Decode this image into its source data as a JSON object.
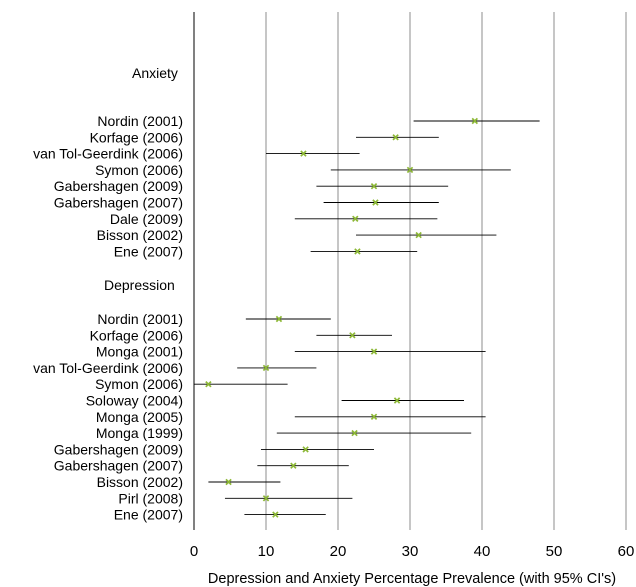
{
  "chart_data": {
    "type": "forest",
    "xlabel": "Depression and Anxiety Percentage Prevalence (with 95% CI's)",
    "xlim": [
      0,
      60
    ],
    "xticks": [
      0,
      10,
      20,
      30,
      40,
      50,
      60
    ],
    "grid": true,
    "marker_color": "#8DB836",
    "line_color": "#000000",
    "grid_color": "#8c8c8c",
    "groups": [
      {
        "label": "Anxiety",
        "studies": [
          {
            "label": "Nordin (2001)",
            "estimate": 39,
            "lower": 30.5,
            "upper": 48
          },
          {
            "label": "Korfage (2006)",
            "estimate": 28,
            "lower": 22.5,
            "upper": 34
          },
          {
            "label": "van Tol-Geerdink (2006)",
            "estimate": 15.2,
            "lower": 10,
            "upper": 23
          },
          {
            "label": "Symon (2006)",
            "estimate": 30,
            "lower": 19,
            "upper": 44
          },
          {
            "label": "Gabershagen (2009)",
            "estimate": 25,
            "lower": 17,
            "upper": 35.3
          },
          {
            "label": "Gabershagen (2007)",
            "estimate": 25.2,
            "lower": 18,
            "upper": 34
          },
          {
            "label": "Dale (2009)",
            "estimate": 22.4,
            "lower": 14,
            "upper": 33.8
          },
          {
            "label": "Bisson (2002)",
            "estimate": 31.2,
            "lower": 22.5,
            "upper": 42
          },
          {
            "label": "Ene (2007)",
            "estimate": 22.7,
            "lower": 16.2,
            "upper": 31
          }
        ]
      },
      {
        "label": "Depression",
        "studies": [
          {
            "label": "Nordin (2001)",
            "estimate": 11.8,
            "lower": 7.2,
            "upper": 19
          },
          {
            "label": "Korfage (2006)",
            "estimate": 22,
            "lower": 17,
            "upper": 27.5
          },
          {
            "label": "Monga (2001)",
            "estimate": 25,
            "lower": 14,
            "upper": 40.5
          },
          {
            "label": "van Tol-Geerdink (2006)",
            "estimate": 10,
            "lower": 6,
            "upper": 17
          },
          {
            "label": "Symon (2006)",
            "estimate": 2,
            "lower": 0,
            "upper": 13
          },
          {
            "label": "Soloway (2004)",
            "estimate": 28.2,
            "lower": 20.5,
            "upper": 37.5
          },
          {
            "label": "Monga (2005)",
            "estimate": 25,
            "lower": 14,
            "upper": 40.5
          },
          {
            "label": "Monga (1999)",
            "estimate": 22.3,
            "lower": 11.5,
            "upper": 38.5
          },
          {
            "label": "Gabershagen (2009)",
            "estimate": 15.5,
            "lower": 9.3,
            "upper": 25
          },
          {
            "label": "Gabershagen (2007)",
            "estimate": 13.8,
            "lower": 8.8,
            "upper": 21.5
          },
          {
            "label": "Bisson (2002)",
            "estimate": 4.8,
            "lower": 2,
            "upper": 12
          },
          {
            "label": "Pirl (2008)",
            "estimate": 10,
            "lower": 4.3,
            "upper": 22
          },
          {
            "label": "Ene (2007)",
            "estimate": 11.3,
            "lower": 7,
            "upper": 18.3
          }
        ]
      }
    ]
  }
}
